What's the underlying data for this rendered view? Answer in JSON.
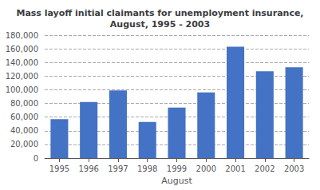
{
  "chart_data": {
    "type": "bar",
    "title": "Mass layoff initial claimants for unemployment insurance,\nAugust, 1995 - 2003",
    "xlabel": "August",
    "categories": [
      "1995",
      "1996",
      "1997",
      "1998",
      "1999",
      "2000",
      "2001",
      "2002",
      "2003"
    ],
    "values": [
      57000,
      82000,
      99000,
      53000,
      74000,
      96000,
      163000,
      127000,
      133000
    ],
    "color": "#4472C4",
    "ylim": [
      0,
      180000
    ],
    "yticks": [
      0,
      {
        "value": 20000,
        "label": "20,000"
      },
      {
        "value": 40000,
        "label": "40,000"
      },
      {
        "value": 60000,
        "label": "60,000"
      },
      {
        "value": 80000,
        "label": "80,000"
      },
      {
        "value": 100000,
        "label": "100,000"
      },
      {
        "value": 120000,
        "label": "120,000"
      },
      {
        "value": 140000,
        "label": "140,000"
      },
      {
        "value": 160000,
        "label": "160,000"
      },
      {
        "value": 180000,
        "label": "180,000"
      }
    ],
    "grid": true
  }
}
